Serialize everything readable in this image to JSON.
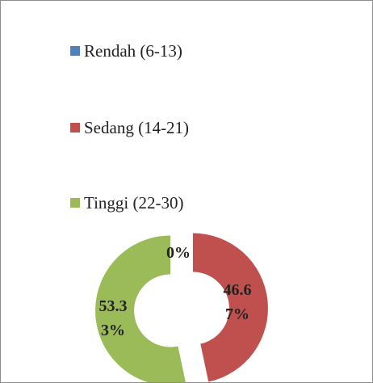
{
  "chart_data": {
    "type": "doughnut",
    "categories": [
      "Rendah (6-13)",
      "Sedang (14-21)",
      "Tinggi (22-30)"
    ],
    "values": [
      0,
      46.67,
      53.33
    ],
    "value_labels": [
      "0%",
      "46.67%",
      "53.33%"
    ],
    "colors": [
      "#4f81bd",
      "#c0504d",
      "#9bbb59"
    ],
    "legend": "top"
  }
}
